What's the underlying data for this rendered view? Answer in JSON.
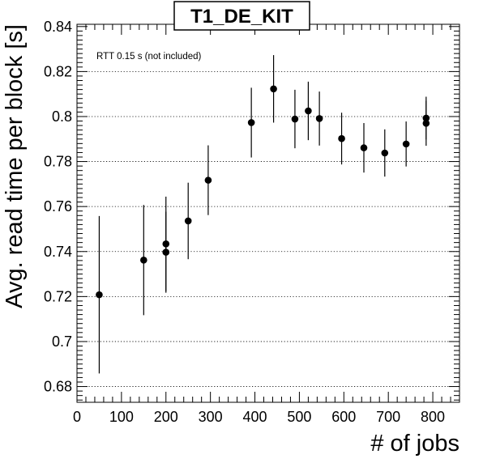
{
  "chart_data": {
    "type": "scatter",
    "title": "T1_DE_KIT",
    "xlabel": "# of jobs",
    "ylabel": "Avg. read time per block [s]",
    "annotation": "RTT 0.15 s (not included)",
    "xlim": [
      0,
      860
    ],
    "ylim": [
      0.673,
      0.841
    ],
    "x_ticks": [
      0,
      100,
      200,
      300,
      400,
      500,
      600,
      700,
      800
    ],
    "y_ticks": [
      0.68,
      0.7,
      0.72,
      0.74,
      0.76,
      0.78,
      0.8,
      0.82,
      0.84
    ],
    "y_tick_labels": [
      "0.68",
      "0.7",
      "0.72",
      "0.74",
      "0.76",
      "0.78",
      "0.8",
      "0.82",
      "0.84"
    ],
    "grid": "horizontal dotted",
    "marker_color": "#000000",
    "points": [
      {
        "x": 50,
        "y": 0.7208,
        "err": 0.035
      },
      {
        "x": 150,
        "y": 0.7362,
        "err": 0.0245
      },
      {
        "x": 200,
        "y": 0.7397,
        "err": 0.018
      },
      {
        "x": 200,
        "y": 0.7434,
        "err": 0.021
      },
      {
        "x": 250,
        "y": 0.7536,
        "err": 0.017
      },
      {
        "x": 295,
        "y": 0.7717,
        "err": 0.0155
      },
      {
        "x": 392,
        "y": 0.7973,
        "err": 0.0155
      },
      {
        "x": 442,
        "y": 0.8123,
        "err": 0.015
      },
      {
        "x": 490,
        "y": 0.7989,
        "err": 0.013
      },
      {
        "x": 520,
        "y": 0.8025,
        "err": 0.013
      },
      {
        "x": 545,
        "y": 0.7991,
        "err": 0.012
      },
      {
        "x": 595,
        "y": 0.7902,
        "err": 0.0115
      },
      {
        "x": 645,
        "y": 0.7861,
        "err": 0.011
      },
      {
        "x": 692,
        "y": 0.7838,
        "err": 0.0105
      },
      {
        "x": 740,
        "y": 0.7878,
        "err": 0.01
      },
      {
        "x": 785,
        "y": 0.797,
        "err": 0.01
      },
      {
        "x": 785,
        "y": 0.7993,
        "err": 0.0095
      }
    ]
  }
}
